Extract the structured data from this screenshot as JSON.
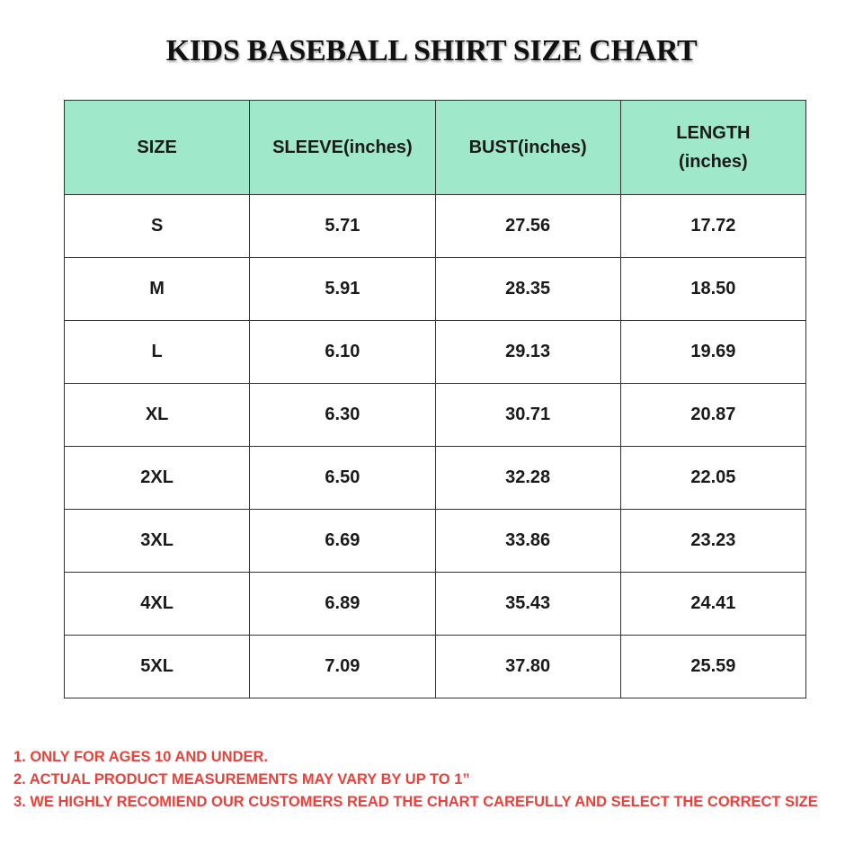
{
  "title": "KIDS BASEBALL SHIRT SIZE CHART",
  "table": {
    "headers": [
      "SIZE",
      "SLEEVE(inches)",
      "BUST(inches)",
      "LENGTH\n(inches)"
    ],
    "rows": [
      [
        "S",
        "5.71",
        "27.56",
        "17.72"
      ],
      [
        "M",
        "5.91",
        "28.35",
        "18.50"
      ],
      [
        "L",
        "6.10",
        "29.13",
        "19.69"
      ],
      [
        "XL",
        "6.30",
        "30.71",
        "20.87"
      ],
      [
        "2XL",
        "6.50",
        "32.28",
        "22.05"
      ],
      [
        "3XL",
        "6.69",
        "33.86",
        "23.23"
      ],
      [
        "4XL",
        "6.89",
        "35.43",
        "24.41"
      ],
      [
        "5XL",
        "7.09",
        "37.80",
        "25.59"
      ]
    ]
  },
  "notes": [
    "1. ONLY FOR AGES 10 AND UNDER.",
    "2. ACTUAL PRODUCT MEASUREMENTS MAY VARY BY UP TO 1”",
    "3. WE HIGHLY RECOMIEND OUR CUSTOMERS READ THE CHART CAREFULLY AND SELECT THE CORRECT SIZE"
  ],
  "colors": {
    "header_bg": "#9fe8c9",
    "notes_text": "#e8423a",
    "border": "#333333"
  }
}
